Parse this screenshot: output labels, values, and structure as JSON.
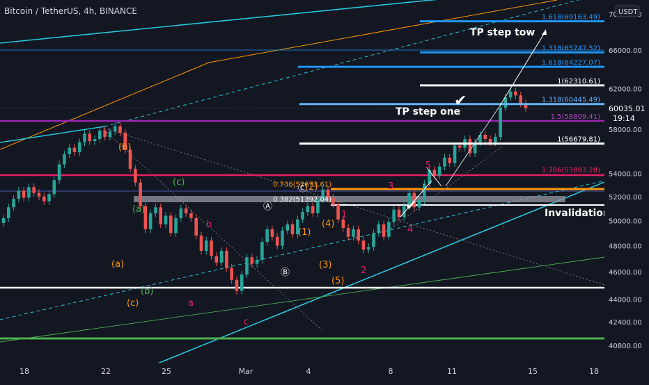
{
  "header": {
    "symbol_line": "Bitcoin / TetherUS, 4h, BINANCE",
    "currency_badge": "USDT"
  },
  "colors": {
    "background": "#131722",
    "up": "#26a69a",
    "down": "#ef5350",
    "text": "#d1d4dc",
    "blue_level": "#2196f3",
    "magenta": "#9c27b0",
    "pink": "#e91e63",
    "orange": "#ff9800",
    "cyan": "#26c6da",
    "green": "#4caf50",
    "white": "#ffffff"
  },
  "chart_data": {
    "type": "candlestick",
    "title": "Bitcoin / TetherUS, 4h, BINANCE",
    "y_axis": {
      "min": 39800,
      "max": 70600,
      "ticks": [
        40800,
        42400,
        44000,
        46000,
        48000,
        50000,
        52000,
        54000,
        58000,
        62000,
        66000,
        70000
      ],
      "scale": "log",
      "position": "right"
    },
    "x_axis": {
      "tick_labels": [
        "18",
        "22",
        "25",
        "Mar",
        "4",
        "8",
        "11",
        "15",
        "18"
      ]
    },
    "grid": false,
    "last_price": {
      "value": "60035.01",
      "countdown": "19:14"
    },
    "candles_close": [
      50200,
      51100,
      51800,
      52500,
      51900,
      52800,
      52300,
      52000,
      51600,
      52200,
      53400,
      54800,
      55700,
      56300,
      55900,
      56800,
      57600,
      56900,
      57100,
      57900,
      57300,
      57800,
      58300,
      57700,
      56100,
      54400,
      53200,
      51200,
      49300,
      50600,
      51100,
      49700,
      50400,
      49000,
      50200,
      51000,
      50600,
      50200,
      48800,
      47600,
      48400,
      47200,
      46700,
      47600,
      46300,
      45400,
      44600,
      45800,
      47100,
      46600,
      46900,
      48300,
      49300,
      48700,
      48000,
      49200,
      49700,
      48900,
      50100,
      50700,
      51200,
      50600,
      51800,
      52600,
      51900,
      51300,
      50100,
      49400,
      48700,
      49300,
      48400,
      47700,
      47900,
      49000,
      49700,
      48700,
      49900,
      50900,
      50300,
      51200,
      52300,
      51100,
      51700,
      53100,
      54300,
      53800,
      54600,
      55400,
      54900,
      56500,
      56300,
      57100,
      55800,
      56800,
      57500,
      57100,
      56800,
      57300,
      60100,
      61100,
      61700,
      61300,
      60500,
      60035
    ],
    "fib_levels": [
      {
        "label": "1.618(69163.49)",
        "price": 69163.49
      },
      {
        "label": "1.318(65747.52)",
        "price": 65747.52
      },
      {
        "label": "1.618(64227.07)",
        "price": 64227.07
      },
      {
        "label": "1(62310.61)",
        "price": 62310.61
      },
      {
        "label": "1.318(60445.49)",
        "price": 60445.49
      },
      {
        "label": "1.5(58809.41)",
        "price": 58809.41
      },
      {
        "label": "1(56679.81)",
        "price": 56679.81
      },
      {
        "label": "1.786(53893.28)",
        "price": 53893.28
      },
      {
        "label": "0.736(52673.61)",
        "price": 52673.61
      },
      {
        "label": "0.382(51392.04)",
        "price": 51392.04
      }
    ],
    "annotations": {
      "tp_step_tow": "TP step tow",
      "tp_step_one": "TP step one",
      "invalidation": "Invalidation l",
      "check": "✔"
    },
    "wave_labels": [
      {
        "text": "(b)",
        "color": "#ff9800"
      },
      {
        "text": "(a)",
        "color": "#ff9800"
      },
      {
        "text": "(c)",
        "color": "#ff9800"
      },
      {
        "text": "(c)",
        "color": "#4caf50"
      },
      {
        "text": "(a)",
        "color": "#4caf50"
      },
      {
        "text": "(b)",
        "color": "#4caf50"
      },
      {
        "text": "b",
        "color": "#e91e63"
      },
      {
        "text": "a",
        "color": "#e91e63"
      },
      {
        "text": "c",
        "color": "#e91e63"
      },
      {
        "text": "Ⓐ",
        "color": "#ffffff"
      },
      {
        "text": "Ⓑ",
        "color": "#ffffff"
      },
      {
        "text": "Ⓒ",
        "color": "#ffffff"
      },
      {
        "text": "(1)",
        "color": "#ff9800"
      },
      {
        "text": "(2)",
        "color": "#ff9800"
      },
      {
        "text": "(3)",
        "color": "#ff9800"
      },
      {
        "text": "(4)",
        "color": "#ff9800"
      },
      {
        "text": "(5)",
        "color": "#ff9800"
      },
      {
        "text": "1",
        "color": "#e91e63"
      },
      {
        "text": "2",
        "color": "#e91e63"
      },
      {
        "text": "3",
        "color": "#e91e63"
      },
      {
        "text": "4",
        "color": "#e91e63"
      },
      {
        "text": "5",
        "color": "#e91e63"
      }
    ]
  }
}
